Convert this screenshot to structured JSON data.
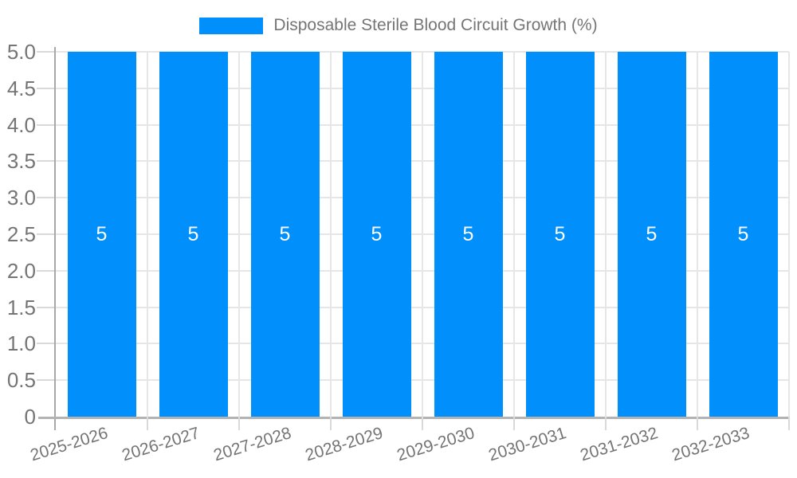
{
  "legend": {
    "label": "Disposable Sterile Blood Circuit Growth (%)"
  },
  "chart_data": {
    "type": "bar",
    "title": "",
    "xlabel": "",
    "ylabel": "",
    "series_name": "Disposable Sterile Blood Circuit Growth (%)",
    "categories": [
      "2025-2026",
      "2026-2027",
      "2027-2028",
      "2028-2029",
      "2029-2030",
      "2030-2031",
      "2031-2032",
      "2032-2033"
    ],
    "values": [
      5,
      5,
      5,
      5,
      5,
      5,
      5,
      5
    ],
    "bar_labels": [
      "5",
      "5",
      "5",
      "5",
      "5",
      "5",
      "5",
      "5"
    ],
    "ylim": [
      0,
      5
    ],
    "ytick_labels": [
      "0",
      "0.5",
      "1.0",
      "1.5",
      "2.0",
      "2.5",
      "3.0",
      "3.5",
      "4.0",
      "4.5",
      "5.0"
    ],
    "grid": true,
    "legend_position": "top-center",
    "x_label_rotation_deg": -17,
    "colors": {
      "bar": "#008FFB",
      "bar_label": "#FFFFFF",
      "axis_text": "#757575",
      "gridline": "#E6E6E6",
      "axis_line": "#A8A8A8",
      "baseline": "#B3B3B3",
      "background": "#FFFFFF"
    }
  }
}
